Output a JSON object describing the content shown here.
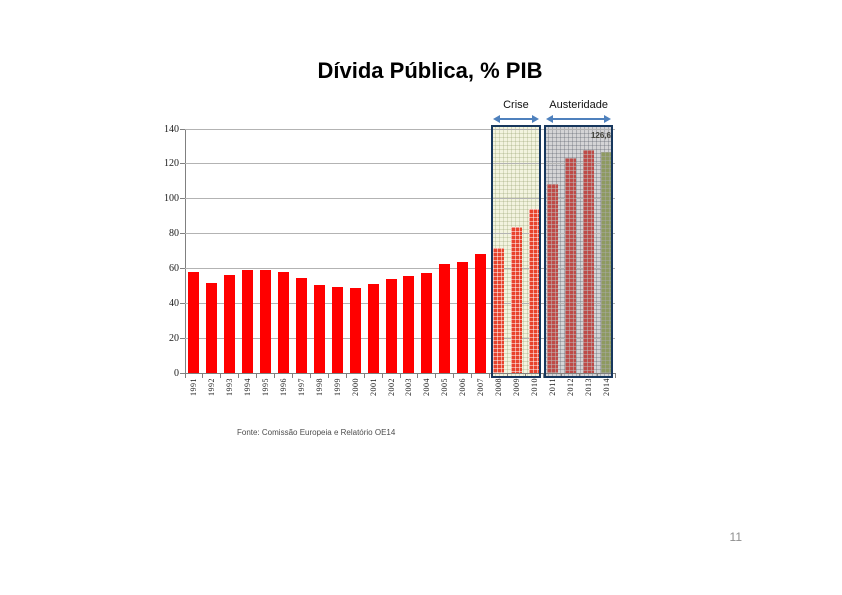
{
  "slide": {
    "title": "Dívida Pública, % PIB",
    "source_note": "Fonte: Comissão Europeia e Relatório OE14",
    "page_number": "11"
  },
  "chart_data": {
    "type": "bar",
    "title": "Dívida Pública, % PIB",
    "xlabel": "",
    "ylabel": "",
    "ylim": [
      0,
      140
    ],
    "yticks": [
      0,
      20,
      40,
      60,
      80,
      100,
      120,
      140
    ],
    "grid": true,
    "legend": "none",
    "categories": [
      "1991",
      "1992",
      "1993",
      "1994",
      "1995",
      "1996",
      "1997",
      "1998",
      "1999",
      "2000",
      "2001",
      "2002",
      "2003",
      "2004",
      "2005",
      "2006",
      "2007",
      "2008",
      "2009",
      "2010",
      "2011",
      "2012",
      "2013",
      "2014"
    ],
    "values": [
      58.0,
      51.5,
      56.5,
      59.0,
      59.2,
      58.2,
      54.5,
      50.3,
      49.6,
      48.5,
      51.2,
      53.8,
      55.9,
      57.6,
      62.8,
      63.9,
      68.3,
      71.7,
      83.6,
      94.0,
      108.3,
      123.6,
      127.8,
      126.6
    ],
    "groups": [
      "normal",
      "normal",
      "normal",
      "normal",
      "normal",
      "normal",
      "normal",
      "normal",
      "normal",
      "normal",
      "normal",
      "normal",
      "normal",
      "normal",
      "normal",
      "normal",
      "normal",
      "crise",
      "crise",
      "crise",
      "austeridade",
      "austeridade",
      "austeridade",
      "forecast"
    ],
    "regions": [
      {
        "label": "Crise",
        "from": "2008",
        "to": "2010",
        "style": "crise"
      },
      {
        "label": "Austeridade",
        "from": "2011",
        "to": "2014",
        "style": "austeridade"
      }
    ],
    "annotations": [
      {
        "text": "126,6",
        "year": "2014"
      }
    ],
    "colors": {
      "bar_normal": "#ff0000",
      "bar_crise": "#e8432d",
      "bar_austeridade": "#be4b48",
      "bar_forecast": "#8e9a61",
      "region_crise_bg": "#f2f3df",
      "region_austeridade_bg": "#d4d4d6",
      "region_border": "#17375d",
      "arrow": "#4f81bd",
      "gridline": "#b3b3b3"
    }
  }
}
